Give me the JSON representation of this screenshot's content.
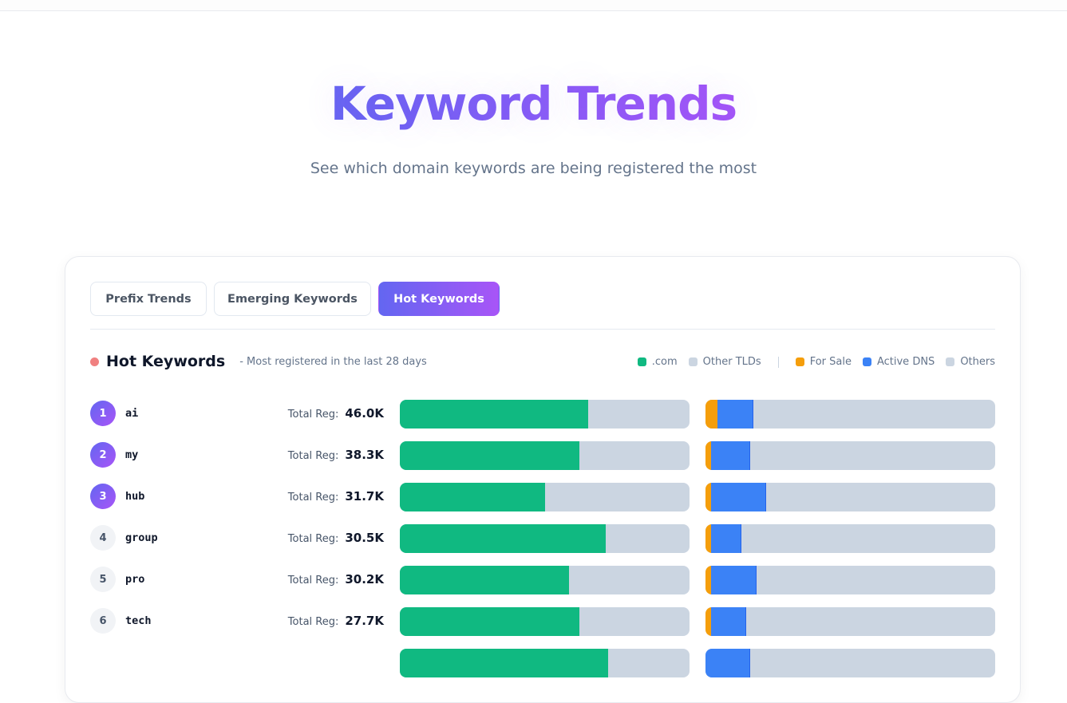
{
  "hero": {
    "title": "Keyword Trends",
    "subtitle": "See which domain keywords are being registered the most"
  },
  "tabs": [
    {
      "label": "Prefix Trends",
      "active": false
    },
    {
      "label": "Emerging Keywords",
      "active": false
    },
    {
      "label": "Hot Keywords",
      "active": true
    }
  ],
  "section": {
    "title": "Hot Keywords",
    "subtitle": "- Most registered in the last 28 days",
    "indicator_color": "#f08080"
  },
  "legend": {
    "tld": [
      {
        "label": ".com",
        "color": "#10b981"
      },
      {
        "label": "Other TLDs",
        "color": "#cbd5e1"
      }
    ],
    "status": [
      {
        "label": "For Sale",
        "color": "#f59e0b"
      },
      {
        "label": "Active DNS",
        "color": "#3b82f6"
      },
      {
        "label": "Others",
        "color": "#cbd5e1"
      }
    ]
  },
  "total_label": "Total Reg:",
  "keywords": [
    {
      "rank": "1",
      "keyword": "ai",
      "total": "46.0K",
      "com_pct": 65,
      "for_sale_pct": 4,
      "active_dns_pct": 12.5
    },
    {
      "rank": "2",
      "keyword": "my",
      "total": "38.3K",
      "com_pct": 62,
      "for_sale_pct": 2,
      "active_dns_pct": 13.5
    },
    {
      "rank": "3",
      "keyword": "hub",
      "total": "31.7K",
      "com_pct": 50,
      "for_sale_pct": 2,
      "active_dns_pct": 19
    },
    {
      "rank": "4",
      "keyword": "group",
      "total": "30.5K",
      "com_pct": 71,
      "for_sale_pct": 2,
      "active_dns_pct": 10.5
    },
    {
      "rank": "5",
      "keyword": "pro",
      "total": "30.2K",
      "com_pct": 58.5,
      "for_sale_pct": 2,
      "active_dns_pct": 15.5
    },
    {
      "rank": "6",
      "keyword": "tech",
      "total": "27.7K",
      "com_pct": 62,
      "for_sale_pct": 2,
      "active_dns_pct": 12
    }
  ],
  "chart_data": {
    "type": "bar",
    "title": "Hot Keywords - Most registered in the last 28 days",
    "categories": [
      "ai",
      "my",
      "hub",
      "group",
      "pro",
      "tech"
    ],
    "totals": [
      "46.0K",
      "38.3K",
      "31.7K",
      "30.5K",
      "30.2K",
      "27.7K"
    ],
    "series": [
      {
        "name": ".com (% of total)",
        "values": [
          65,
          62,
          50,
          71,
          58.5,
          62
        ]
      },
      {
        "name": "Other TLDs (% of total)",
        "values": [
          35,
          38,
          50,
          29,
          41.5,
          38
        ]
      },
      {
        "name": "For Sale (%)",
        "values": [
          4,
          2,
          2,
          2,
          2,
          2
        ]
      },
      {
        "name": "Active DNS (%)",
        "values": [
          12.5,
          13.5,
          19,
          10.5,
          15.5,
          12
        ]
      },
      {
        "name": "Others (%)",
        "values": [
          83.5,
          84.5,
          79,
          87.5,
          82.5,
          86
        ]
      }
    ],
    "legend": [
      ".com",
      "Other TLDs",
      "For Sale",
      "Active DNS",
      "Others"
    ],
    "legend_position": "top-right",
    "orientation": "horizontal-stacked-100"
  }
}
